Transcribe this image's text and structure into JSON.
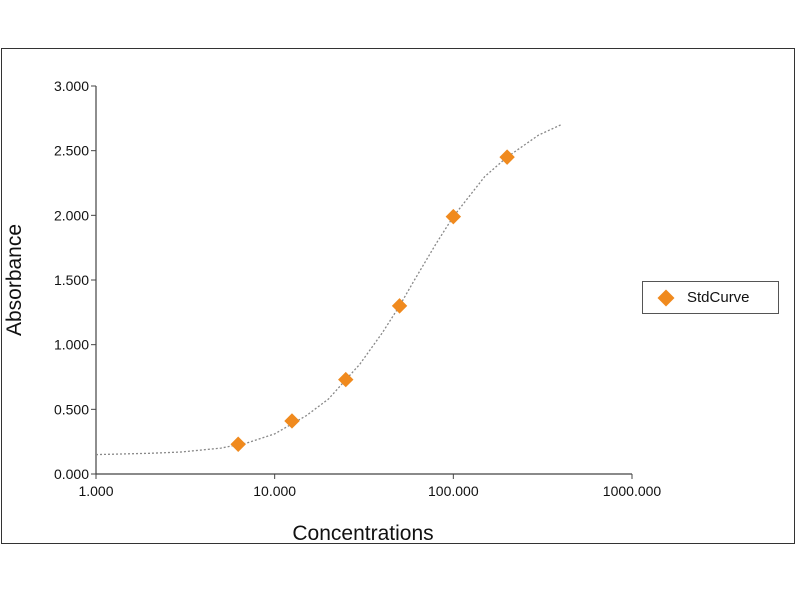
{
  "chart_data": {
    "type": "scatter",
    "xscale": "log",
    "xlabel": "Concentrations",
    "ylabel": "Absorbance",
    "xlim": [
      1,
      1000
    ],
    "ylim": [
      0,
      3
    ],
    "xticks": [
      "1.000",
      "10.000",
      "100.000",
      "1000.000"
    ],
    "yticks": [
      "0.000",
      "0.500",
      "1.000",
      "1.500",
      "2.000",
      "2.500",
      "3.000"
    ],
    "series": [
      {
        "name": "StdCurve",
        "color": "#f08a1e",
        "marker": "diamond",
        "x": [
          6.25,
          12.5,
          25,
          50,
          100,
          200
        ],
        "y": [
          0.23,
          0.41,
          0.73,
          1.3,
          1.99,
          2.45
        ]
      }
    ],
    "fit_curve": {
      "style": "dotted",
      "color": "#888888",
      "x": [
        1,
        2,
        3,
        5,
        7,
        10,
        15,
        20,
        30,
        40,
        50,
        60,
        80,
        100,
        150,
        200,
        300,
        400
      ],
      "y": [
        0.15,
        0.16,
        0.17,
        0.2,
        0.24,
        0.31,
        0.45,
        0.58,
        0.85,
        1.09,
        1.3,
        1.49,
        1.78,
        1.99,
        2.3,
        2.45,
        2.62,
        2.7
      ]
    },
    "legend": {
      "position": "right",
      "entries": [
        "StdCurve"
      ]
    },
    "grid": false
  }
}
